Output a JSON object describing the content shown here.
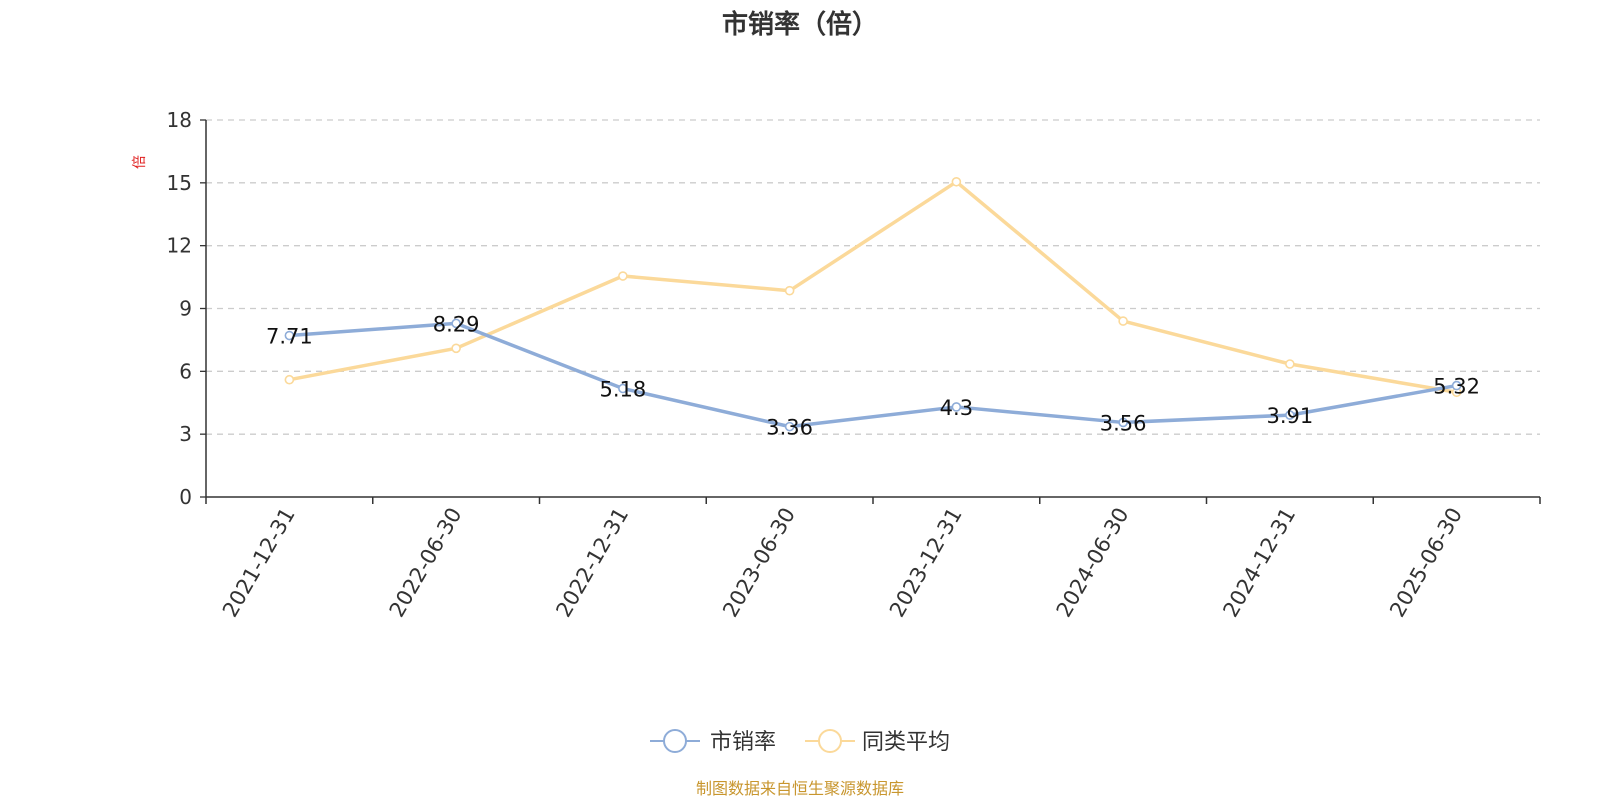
{
  "chart_data": {
    "type": "line",
    "title": "市销率（倍）",
    "ylabel": "倍",
    "ylim": [
      0,
      18
    ],
    "y_ticks": [
      0,
      3,
      6,
      9,
      12,
      15,
      18
    ],
    "grid": true,
    "legend_position": "bottom",
    "categories": [
      "2021-12-31",
      "2022-06-30",
      "2022-12-31",
      "2023-06-30",
      "2023-12-31",
      "2024-06-30",
      "2024-12-31",
      "2025-06-30"
    ],
    "series": [
      {
        "name": "市销率",
        "color": "#8eacd8",
        "values": [
          7.71,
          8.29,
          5.18,
          3.36,
          4.3,
          3.56,
          3.91,
          5.32
        ],
        "show_labels": true
      },
      {
        "name": "同类平均",
        "color": "#fbd99a",
        "values": [
          5.6,
          7.1,
          10.55,
          9.85,
          15.05,
          8.4,
          6.35,
          5.0
        ],
        "show_labels": false
      }
    ],
    "source": "制图数据来自恒生聚源数据库"
  }
}
